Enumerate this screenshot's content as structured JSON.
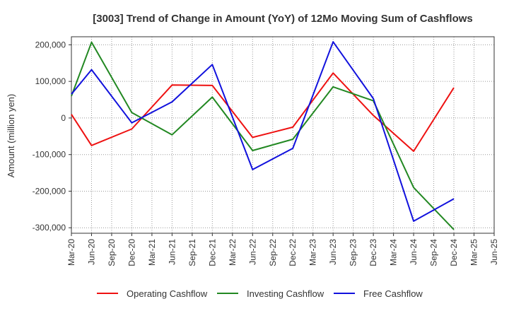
{
  "chart_data": {
    "type": "line",
    "title": "[3003]  Trend of Change in Amount (YoY) of 12Mo Moving Sum of Cashflows",
    "xlabel": "",
    "ylabel": "Amount (million yen)",
    "ylim": [
      -315000,
      222000
    ],
    "yticks": [
      200000,
      100000,
      0,
      -100000,
      -200000,
      -300000
    ],
    "ytick_labels": [
      "200,000",
      "100,000",
      "0",
      "-100,000",
      "-200,000",
      "-300,000"
    ],
    "categories": [
      "Mar-20",
      "Jun-20",
      "Sep-20",
      "Dec-20",
      "Mar-21",
      "Jun-21",
      "Sep-21",
      "Dec-21",
      "Mar-22",
      "Jun-22",
      "Sep-22",
      "Dec-22",
      "Mar-23",
      "Jun-23",
      "Sep-23",
      "Dec-23",
      "Mar-24",
      "Jun-24",
      "Sep-24",
      "Dec-24",
      "Mar-25",
      "Jun-25"
    ],
    "grid": true,
    "legend_position": "bottom",
    "series": [
      {
        "name": "Operating Cashflow",
        "color": "#ee1111",
        "points": [
          {
            "x": "Mar-20",
            "y": 10000
          },
          {
            "x": "Jun-20",
            "y": -75000
          },
          {
            "x": "Dec-20",
            "y": -30000
          },
          {
            "x": "Jun-21",
            "y": 90000
          },
          {
            "x": "Dec-21",
            "y": 89000
          },
          {
            "x": "Jun-22",
            "y": -53000
          },
          {
            "x": "Dec-22",
            "y": -25000
          },
          {
            "x": "Jun-23",
            "y": 123000
          },
          {
            "x": "Dec-23",
            "y": 7000
          },
          {
            "x": "Jun-24",
            "y": -91000
          },
          {
            "x": "Dec-24",
            "y": 83000
          }
        ]
      },
      {
        "name": "Investing Cashflow",
        "color": "#228822",
        "points": [
          {
            "x": "Mar-20",
            "y": 60000
          },
          {
            "x": "Jun-20",
            "y": 207000
          },
          {
            "x": "Dec-20",
            "y": 15000
          },
          {
            "x": "Jun-21",
            "y": -46000
          },
          {
            "x": "Dec-21",
            "y": 57000
          },
          {
            "x": "Jun-22",
            "y": -89000
          },
          {
            "x": "Dec-22",
            "y": -58000
          },
          {
            "x": "Jun-23",
            "y": 85000
          },
          {
            "x": "Dec-23",
            "y": 47000
          },
          {
            "x": "Jun-24",
            "y": -190000
          },
          {
            "x": "Dec-24",
            "y": -305000
          }
        ]
      },
      {
        "name": "Free Cashflow",
        "color": "#1111dd",
        "points": [
          {
            "x": "Mar-20",
            "y": 65000
          },
          {
            "x": "Jun-20",
            "y": 132000
          },
          {
            "x": "Dec-20",
            "y": -13000
          },
          {
            "x": "Jun-21",
            "y": 44000
          },
          {
            "x": "Dec-21",
            "y": 146000
          },
          {
            "x": "Jun-22",
            "y": -141000
          },
          {
            "x": "Dec-22",
            "y": -83000
          },
          {
            "x": "Jun-23",
            "y": 208000
          },
          {
            "x": "Dec-23",
            "y": 53000
          },
          {
            "x": "Jun-24",
            "y": -282000
          },
          {
            "x": "Dec-24",
            "y": -221000
          }
        ]
      }
    ]
  }
}
